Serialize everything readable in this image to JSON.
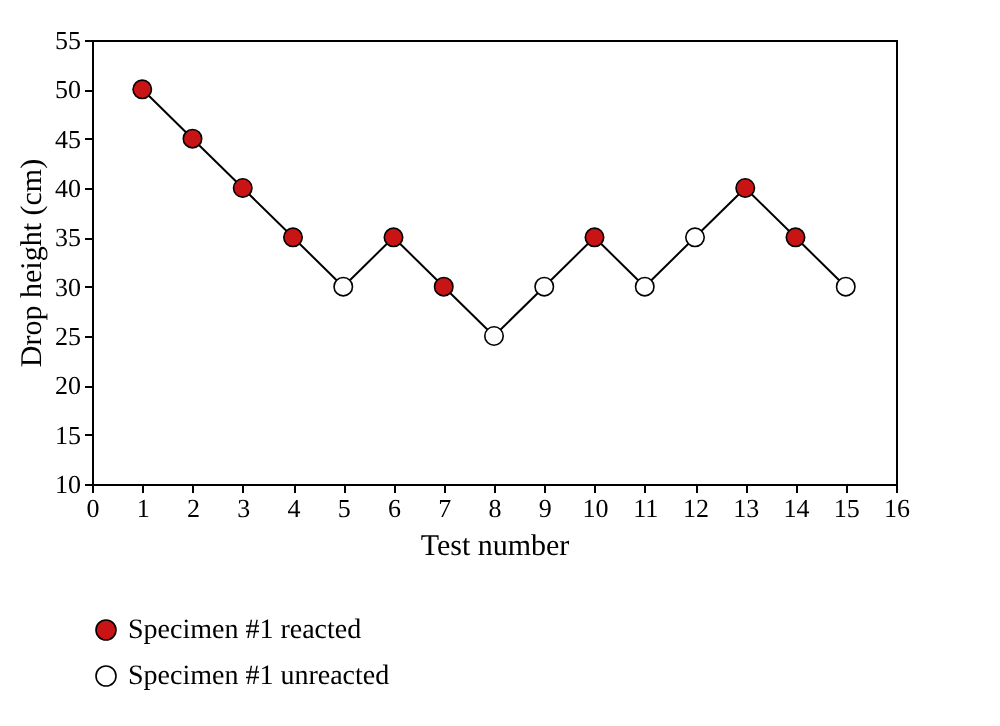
{
  "chart_data": {
    "type": "scatter",
    "xlabel": "Test number",
    "ylabel": "Drop height (cm)",
    "xlim": [
      0,
      16
    ],
    "xticks": [
      0,
      1,
      2,
      3,
      4,
      5,
      6,
      7,
      8,
      9,
      10,
      11,
      12,
      13,
      14,
      15,
      16
    ],
    "ylim": [
      10,
      55
    ],
    "yticks": [
      10,
      15,
      20,
      25,
      30,
      35,
      40,
      45,
      50,
      55
    ],
    "legend": "bottom",
    "series": [
      {
        "type": "line",
        "color": "#000000",
        "x": [
          1,
          2,
          3,
          4,
          5,
          6,
          7,
          8,
          9,
          10,
          11,
          12,
          13,
          14,
          15
        ],
        "values": [
          50,
          45,
          40,
          35,
          30,
          35,
          30,
          25,
          30,
          35,
          30,
          35,
          40,
          35,
          30
        ]
      },
      {
        "name": "Specimen #1 reacted",
        "color": "#c81414",
        "x": [
          1,
          2,
          3,
          4,
          6,
          7,
          10,
          13,
          14
        ],
        "values": [
          50,
          45,
          40,
          35,
          35,
          30,
          35,
          40,
          35
        ]
      },
      {
        "name": "Specimen #1 unreacted",
        "color": "#ffffff",
        "x": [
          5,
          8,
          9,
          11,
          12,
          15
        ],
        "values": [
          30,
          25,
          30,
          30,
          35,
          30
        ]
      }
    ]
  }
}
